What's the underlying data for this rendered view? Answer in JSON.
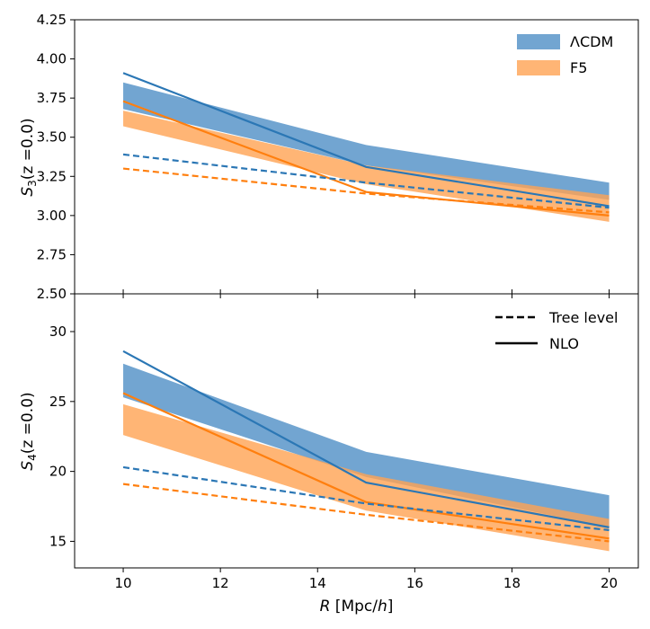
{
  "chart_data": [
    {
      "type": "line",
      "panel": "top",
      "ylabel": "S3(z=0.0)",
      "ylabel_parts": {
        "base": "S",
        "sub": "3",
        "tail": "(z =0.0)"
      },
      "ylim": [
        2.5,
        4.25
      ],
      "yticks": [
        2.5,
        2.75,
        3.0,
        3.25,
        3.5,
        3.75,
        4.0,
        4.25
      ],
      "ytick_labels": [
        "2.50",
        "2.75",
        "3.00",
        "3.25",
        "3.50",
        "3.75",
        "4.00",
        "4.25"
      ],
      "x": [
        10,
        15,
        20
      ],
      "bands": [
        {
          "name": "ΛCDM",
          "color": "#4f8fc6",
          "lower": [
            3.68,
            3.32,
            3.1
          ],
          "upper": [
            3.85,
            3.45,
            3.21
          ]
        },
        {
          "name": "F5",
          "color": "#ffa352",
          "lower": [
            3.57,
            3.2,
            2.96
          ],
          "upper": [
            3.67,
            3.32,
            3.13
          ]
        }
      ],
      "series": [
        {
          "model": "ΛCDM",
          "style": "NLO",
          "color": "#2b77b5",
          "values": [
            3.91,
            3.31,
            3.06
          ]
        },
        {
          "model": "F5",
          "style": "NLO",
          "color": "#ff7f0e",
          "values": [
            3.73,
            3.15,
            3.0
          ]
        },
        {
          "model": "ΛCDM",
          "style": "Tree level",
          "color": "#2b77b5",
          "values": [
            3.39,
            3.21,
            3.05
          ]
        },
        {
          "model": "F5",
          "style": "Tree level",
          "color": "#ff7f0e",
          "values": [
            3.3,
            3.14,
            3.02
          ]
        }
      ],
      "legend": {
        "placement": "top-right",
        "entries": [
          "ΛCDM",
          "F5"
        ]
      }
    },
    {
      "type": "line",
      "panel": "bottom",
      "ylabel": "S4(z=0.0)",
      "ylabel_parts": {
        "base": "S",
        "sub": "4",
        "tail": "(z =0.0)"
      },
      "ylim": [
        13.1,
        32.7
      ],
      "yticks": [
        15,
        20,
        25,
        30
      ],
      "ytick_labels": [
        "15",
        "20",
        "25",
        "30"
      ],
      "xlabel": "R [Mpc/h]",
      "xlabel_parts": {
        "var": "R",
        "unit_open": " [Mpc/",
        "unit_var": "h",
        "unit_close": "]"
      },
      "xlim": [
        9.0,
        20.6
      ],
      "xticks": [
        10,
        12,
        14,
        16,
        18,
        20
      ],
      "xtick_labels": [
        "10",
        "12",
        "14",
        "16",
        "18",
        "20"
      ],
      "x": [
        10,
        15,
        20
      ],
      "bands": [
        {
          "name": "ΛCDM",
          "color": "#4f8fc6",
          "lower": [
            25.3,
            19.6,
            16.0
          ],
          "upper": [
            27.7,
            21.4,
            18.3
          ]
        },
        {
          "name": "F5",
          "color": "#ffa352",
          "lower": [
            22.6,
            17.2,
            14.3
          ],
          "upper": [
            24.8,
            19.8,
            16.6
          ]
        }
      ],
      "series": [
        {
          "model": "ΛCDM",
          "style": "NLO",
          "color": "#2b77b5",
          "values": [
            28.6,
            19.2,
            16.0
          ]
        },
        {
          "model": "F5",
          "style": "NLO",
          "color": "#ff7f0e",
          "values": [
            25.6,
            17.8,
            15.2
          ]
        },
        {
          "model": "ΛCDM",
          "style": "Tree level",
          "color": "#2b77b5",
          "values": [
            20.3,
            17.7,
            15.8
          ]
        },
        {
          "model": "F5",
          "style": "Tree level",
          "color": "#ff7f0e",
          "values": [
            19.1,
            16.9,
            15.0
          ]
        }
      ],
      "legend": {
        "placement": "top-right",
        "entries": [
          "Tree level",
          "NLO"
        ]
      }
    }
  ]
}
